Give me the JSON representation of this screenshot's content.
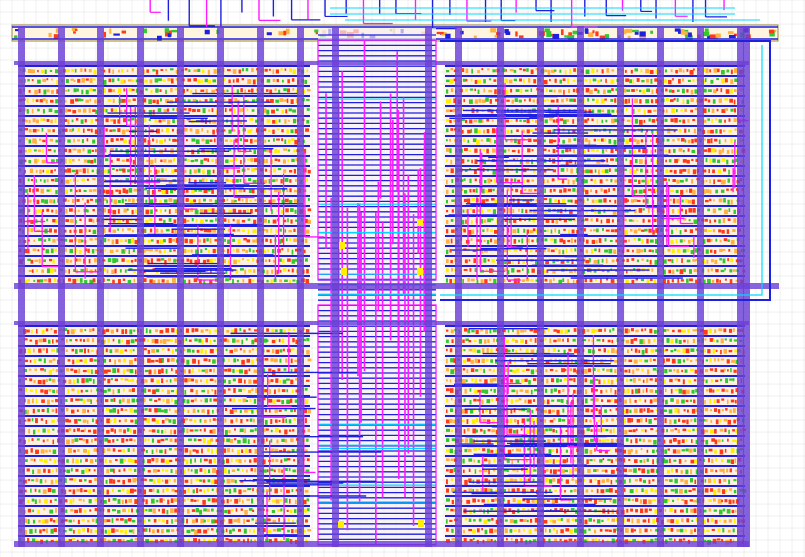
{
  "view": {
    "kind": "ic-layout-viewer",
    "background": "#ffffff"
  },
  "layers": [
    {
      "name": "metal1",
      "color": "#1f1fe0"
    },
    {
      "name": "metal2",
      "color": "#ff1aff"
    },
    {
      "name": "metal3",
      "color": "#00d8ff"
    },
    {
      "name": "power-strap",
      "color": "#6a3fd6"
    },
    {
      "name": "diffusion-red",
      "color": "#ff3a1a"
    },
    {
      "name": "diffusion-green",
      "color": "#33c832"
    },
    {
      "name": "poly-orange",
      "color": "#ffb040"
    },
    {
      "name": "well",
      "color": "#ffe6cc"
    },
    {
      "name": "via",
      "color": "#ffee00"
    },
    {
      "name": "grid",
      "color": "#d8d8d8"
    }
  ],
  "structure": {
    "cell_array_blocks": 4,
    "vertical_power_straps": 19,
    "central_routing_channel": true,
    "top_io_pins": 34
  }
}
